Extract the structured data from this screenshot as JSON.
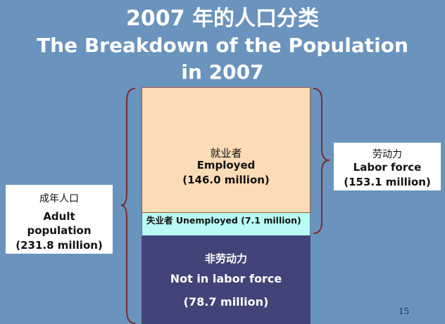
{
  "title": {
    "line1": "2007 年的人口分类",
    "line2": "The Breakdown of the Population",
    "line3": "in 2007"
  },
  "segments": {
    "employed": {
      "zh": "就业者",
      "en": "Employed",
      "value": "(146.0 million)",
      "color": "#fcdcb6"
    },
    "unemployed": {
      "text": "失业者 Unemployed (7.1 million)",
      "color": "#b8faf4"
    },
    "not_in_labor_force": {
      "zh": "非劳动力",
      "en": "Not in labor force",
      "value": "(78.7 million)",
      "color": "#414478"
    }
  },
  "labels": {
    "adult_population": {
      "zh": "成年人口",
      "en_line1": "Adult",
      "en_line2": "population",
      "value": "(231.8 million)"
    },
    "labor_force": {
      "zh": "劳动力",
      "en": "Labor force",
      "value": "(153.1 million)"
    }
  },
  "page_number": "15",
  "colors": {
    "background": "#6a93be",
    "brace": "#7b2d2d"
  }
}
